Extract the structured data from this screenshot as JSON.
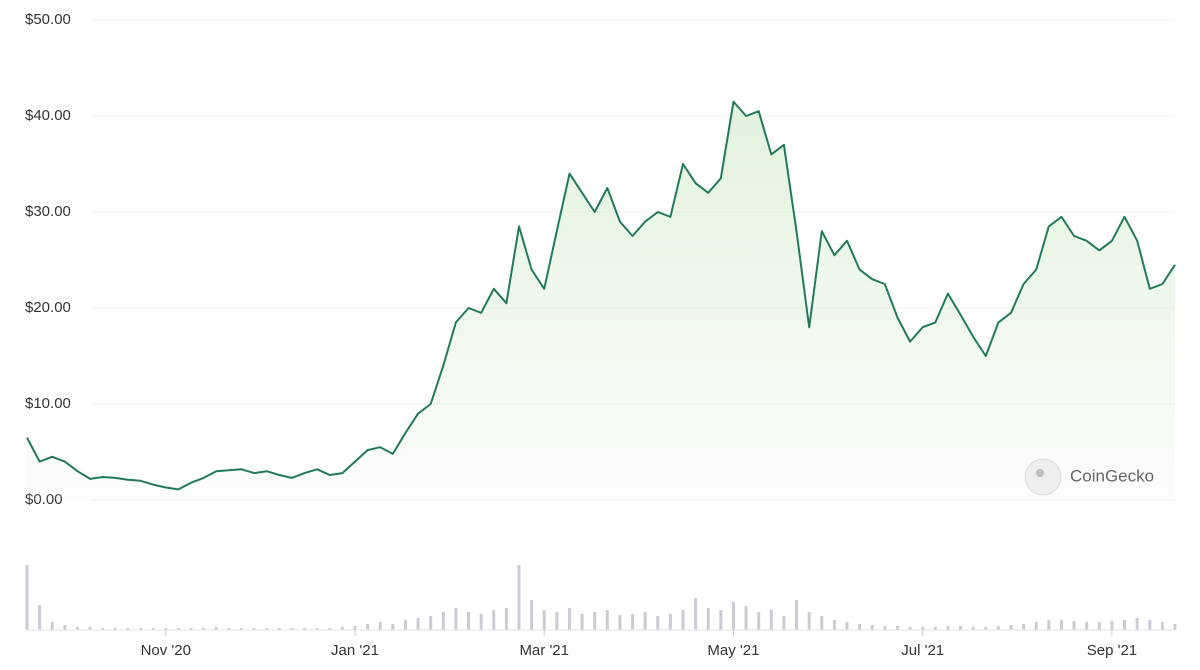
{
  "chart_data": {
    "type": "line",
    "categories": [
      null,
      null,
      null,
      null,
      null,
      null,
      null,
      null,
      null,
      null,
      null,
      "Nov '20",
      null,
      null,
      null,
      null,
      null,
      null,
      null,
      null,
      null,
      null,
      null,
      null,
      null,
      null,
      "Jan '21",
      null,
      null,
      null,
      null,
      null,
      null,
      null,
      null,
      null,
      null,
      null,
      null,
      null,
      null,
      "Mar '21",
      null,
      null,
      null,
      null,
      null,
      null,
      null,
      null,
      null,
      null,
      null,
      null,
      null,
      null,
      "May '21",
      null,
      null,
      null,
      null,
      null,
      null,
      null,
      null,
      null,
      null,
      null,
      null,
      null,
      null,
      "Jul '21",
      null,
      null,
      null,
      null,
      null,
      null,
      null,
      null,
      null,
      null,
      null,
      null,
      null,
      null,
      "Sep '21",
      null,
      null,
      null,
      null,
      null
    ],
    "series": [
      {
        "color": "#237a5b",
        "fill": "#dff1d9",
        "values": [
          6.5,
          4.0,
          4.5,
          4.0,
          3.0,
          2.2,
          2.4,
          2.3,
          2.1,
          2.0,
          1.6,
          1.3,
          1.1,
          1.8,
          2.3,
          3.0,
          3.1,
          3.2,
          2.8,
          3.0,
          2.6,
          2.3,
          2.8,
          3.2,
          2.6,
          2.8,
          4.0,
          5.2,
          5.5,
          4.8,
          7.0,
          9.0,
          10.0,
          14.0,
          18.5,
          20.0,
          19.5,
          22.0,
          20.5,
          28.5,
          24.0,
          22.0,
          28.0,
          34.0,
          32.0,
          30.0,
          32.5,
          29.0,
          27.5,
          29.0,
          30.0,
          29.5,
          35.0,
          33.0,
          32.0,
          33.5,
          41.5,
          40.0,
          40.5,
          36.0,
          37.0,
          28.0,
          18.0,
          28.0,
          25.5,
          27.0,
          24.0,
          23.0,
          22.5,
          19.0,
          16.5,
          18.0,
          18.5,
          21.5,
          19.3,
          17.0,
          15.0,
          18.5,
          19.5,
          22.5,
          24.0,
          28.5,
          29.5,
          27.5,
          27.0,
          26.0,
          27.0,
          29.5,
          27.0,
          22.0,
          22.5,
          24.5
        ]
      }
    ],
    "ylim": [
      0,
      50
    ],
    "yticks": [
      {
        "value": 0,
        "label": "$0.00"
      },
      {
        "value": 10,
        "label": "$10.00"
      },
      {
        "value": 20,
        "label": "$20.00"
      },
      {
        "value": 30,
        "label": "$30.00"
      },
      {
        "value": 40,
        "label": "$40.00"
      },
      {
        "value": 50,
        "label": "$50.00"
      }
    ],
    "grid": true,
    "volume": {
      "color": "#c9ccd3",
      "ylim": [
        0,
        70
      ],
      "values": [
        65,
        25,
        8,
        5,
        3,
        3,
        2,
        2,
        2,
        2,
        2,
        2,
        2,
        2,
        2,
        3,
        2,
        2,
        2,
        2,
        2,
        2,
        2,
        2,
        2,
        3,
        4,
        6,
        8,
        6,
        10,
        12,
        14,
        18,
        22,
        18,
        16,
        20,
        22,
        65,
        30,
        20,
        18,
        22,
        16,
        18,
        20,
        15,
        16,
        18,
        14,
        16,
        20,
        32,
        22,
        20,
        28,
        24,
        18,
        20,
        14,
        30,
        18,
        14,
        10,
        8,
        6,
        5,
        4,
        4,
        3,
        3,
        3,
        4,
        4,
        3,
        3,
        4,
        5,
        6,
        8,
        10,
        10,
        9,
        8,
        8,
        9,
        10,
        12,
        10,
        8,
        6
      ]
    },
    "watermark": "CoinGecko"
  }
}
